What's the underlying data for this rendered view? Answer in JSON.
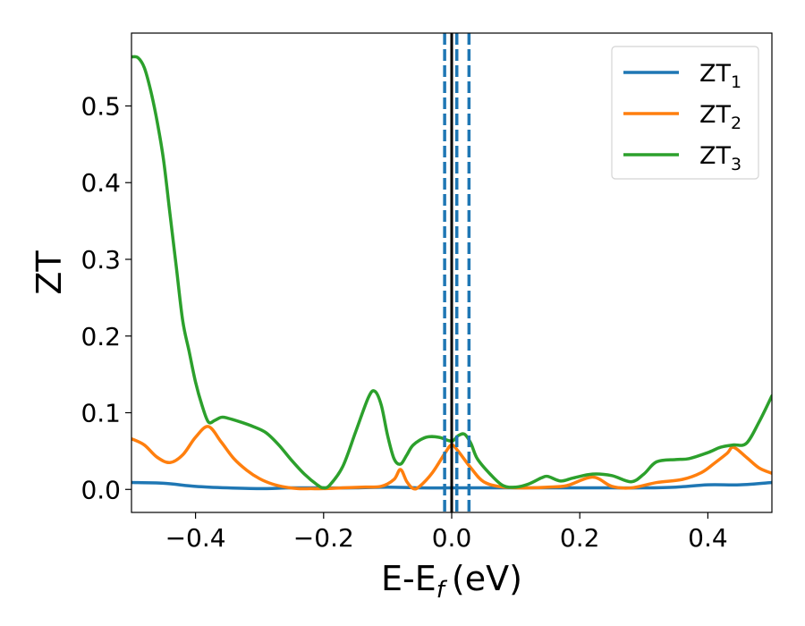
{
  "chart_data": {
    "type": "line",
    "xlabel": "E-E",
    "xlabel_sub": "f",
    "xlabel_unit": "(eV)",
    "ylabel": "ZT",
    "xlim": [
      -0.5,
      0.5
    ],
    "ylim": [
      -0.03,
      0.595
    ],
    "x_ticks": [
      -0.4,
      -0.2,
      0.0,
      0.2,
      0.4
    ],
    "x_tick_labels": [
      "−0.4",
      "−0.2",
      "0.0",
      "0.2",
      "0.4"
    ],
    "y_ticks": [
      0.0,
      0.1,
      0.2,
      0.3,
      0.4,
      0.5
    ],
    "y_tick_labels": [
      "0.0",
      "0.1",
      "0.2",
      "0.3",
      "0.4",
      "0.5"
    ],
    "grid": false,
    "legend_position": "top-right",
    "vlines": [
      {
        "x": -0.011,
        "style": "dashed",
        "color": "#1f77b4"
      },
      {
        "x": 0.008,
        "style": "dashed",
        "color": "#1f77b4"
      },
      {
        "x": 0.027,
        "style": "dashed",
        "color": "#1f77b4"
      },
      {
        "x": 0.0,
        "style": "solid",
        "color": "#000000"
      }
    ],
    "series": [
      {
        "name": "ZT",
        "sub": "1",
        "color": "#1f77b4",
        "x": [
          -0.5,
          -0.45,
          -0.4,
          -0.35,
          -0.3,
          -0.25,
          -0.2,
          -0.15,
          -0.1,
          -0.05,
          0.0,
          0.05,
          0.1,
          0.15,
          0.2,
          0.25,
          0.3,
          0.35,
          0.4,
          0.45,
          0.5
        ],
        "y": [
          0.009,
          0.008,
          0.004,
          0.002,
          0.001,
          0.002,
          0.002,
          0.002,
          0.003,
          0.002,
          0.002,
          0.002,
          0.002,
          0.002,
          0.002,
          0.002,
          0.002,
          0.003,
          0.006,
          0.006,
          0.009
        ]
      },
      {
        "name": "ZT",
        "sub": "2",
        "color": "#ff7f0e",
        "x": [
          -0.5,
          -0.48,
          -0.46,
          -0.44,
          -0.42,
          -0.4,
          -0.38,
          -0.36,
          -0.34,
          -0.32,
          -0.3,
          -0.28,
          -0.26,
          -0.24,
          -0.22,
          -0.2,
          -0.17,
          -0.14,
          -0.11,
          -0.09,
          -0.08,
          -0.07,
          -0.06,
          -0.05,
          -0.03,
          -0.01,
          0.0,
          0.01,
          0.03,
          0.05,
          0.08,
          0.12,
          0.15,
          0.18,
          0.22,
          0.25,
          0.28,
          0.32,
          0.36,
          0.39,
          0.41,
          0.43,
          0.44,
          0.46,
          0.48,
          0.5
        ],
        "y": [
          0.066,
          0.058,
          0.042,
          0.035,
          0.045,
          0.068,
          0.082,
          0.062,
          0.04,
          0.025,
          0.014,
          0.007,
          0.003,
          0.001,
          0.001,
          0.001,
          0.002,
          0.003,
          0.004,
          0.013,
          0.026,
          0.01,
          0.001,
          0.004,
          0.022,
          0.048,
          0.058,
          0.05,
          0.028,
          0.01,
          0.003,
          0.002,
          0.003,
          0.005,
          0.016,
          0.004,
          0.002,
          0.009,
          0.013,
          0.022,
          0.034,
          0.047,
          0.055,
          0.042,
          0.028,
          0.021
        ]
      },
      {
        "name": "ZT",
        "sub": "3",
        "color": "#2ca02c",
        "x": [
          -0.5,
          -0.49,
          -0.48,
          -0.47,
          -0.46,
          -0.45,
          -0.44,
          -0.43,
          -0.42,
          -0.41,
          -0.4,
          -0.39,
          -0.38,
          -0.37,
          -0.36,
          -0.35,
          -0.33,
          -0.31,
          -0.29,
          -0.27,
          -0.25,
          -0.23,
          -0.21,
          -0.2,
          -0.19,
          -0.17,
          -0.15,
          -0.13,
          -0.12,
          -0.11,
          -0.1,
          -0.09,
          -0.08,
          -0.07,
          -0.06,
          -0.04,
          -0.02,
          0.0,
          0.01,
          0.02,
          0.03,
          0.04,
          0.06,
          0.08,
          0.1,
          0.12,
          0.14,
          0.15,
          0.17,
          0.19,
          0.22,
          0.25,
          0.28,
          0.3,
          0.32,
          0.35,
          0.37,
          0.4,
          0.42,
          0.44,
          0.46,
          0.48,
          0.5
        ],
        "y": [
          0.564,
          0.563,
          0.55,
          0.52,
          0.48,
          0.43,
          0.36,
          0.29,
          0.22,
          0.18,
          0.14,
          0.11,
          0.088,
          0.09,
          0.094,
          0.093,
          0.088,
          0.082,
          0.074,
          0.058,
          0.038,
          0.02,
          0.006,
          0.002,
          0.006,
          0.03,
          0.075,
          0.12,
          0.128,
          0.11,
          0.07,
          0.04,
          0.033,
          0.045,
          0.058,
          0.068,
          0.068,
          0.063,
          0.07,
          0.072,
          0.06,
          0.04,
          0.02,
          0.005,
          0.003,
          0.007,
          0.015,
          0.017,
          0.011,
          0.015,
          0.02,
          0.018,
          0.01,
          0.02,
          0.036,
          0.039,
          0.04,
          0.048,
          0.055,
          0.058,
          0.06,
          0.088,
          0.122
        ]
      }
    ]
  }
}
